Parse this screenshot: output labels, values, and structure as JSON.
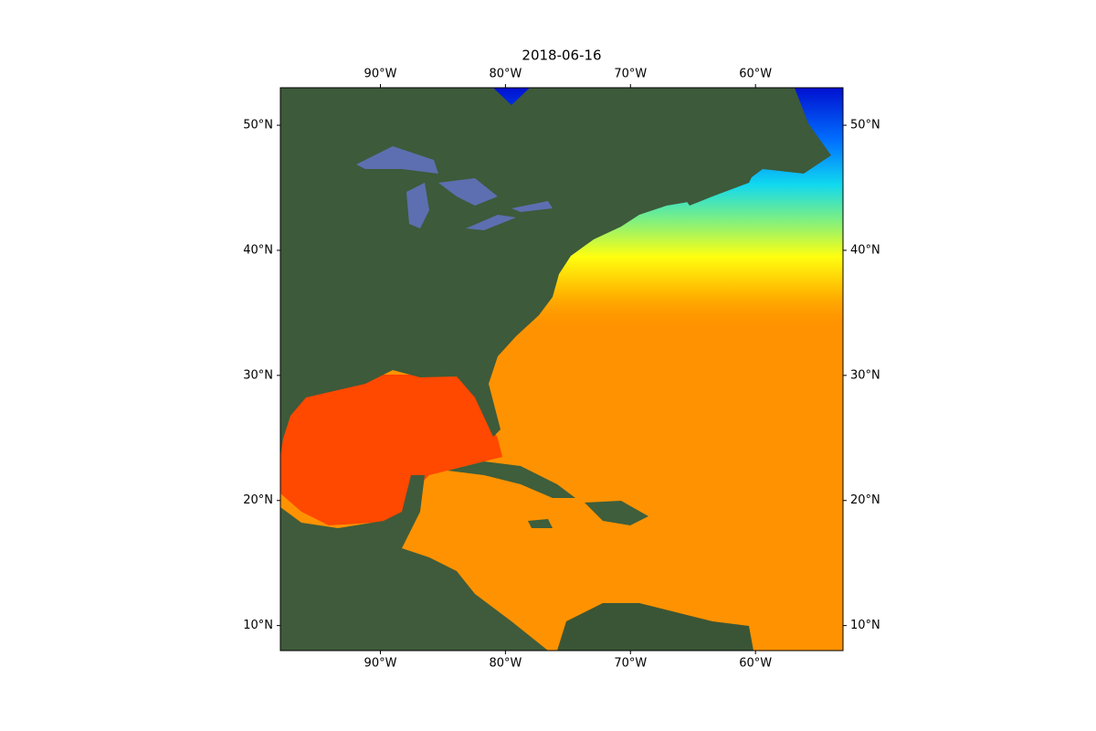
{
  "map": {
    "title": "2018-06-16",
    "xlim": [
      -98,
      -53
    ],
    "ylim": [
      8,
      53
    ],
    "xticks": [
      {
        "value": -90,
        "label": "90°W"
      },
      {
        "value": -80,
        "label": "80°W"
      },
      {
        "value": -70,
        "label": "70°W"
      },
      {
        "value": -60,
        "label": "60°W"
      }
    ],
    "yticks": [
      {
        "value": 10,
        "label": "10°N"
      },
      {
        "value": 20,
        "label": "20°N"
      },
      {
        "value": 30,
        "label": "30°N"
      },
      {
        "value": 40,
        "label": "40°N"
      },
      {
        "value": 50,
        "label": "50°N"
      }
    ]
  }
}
